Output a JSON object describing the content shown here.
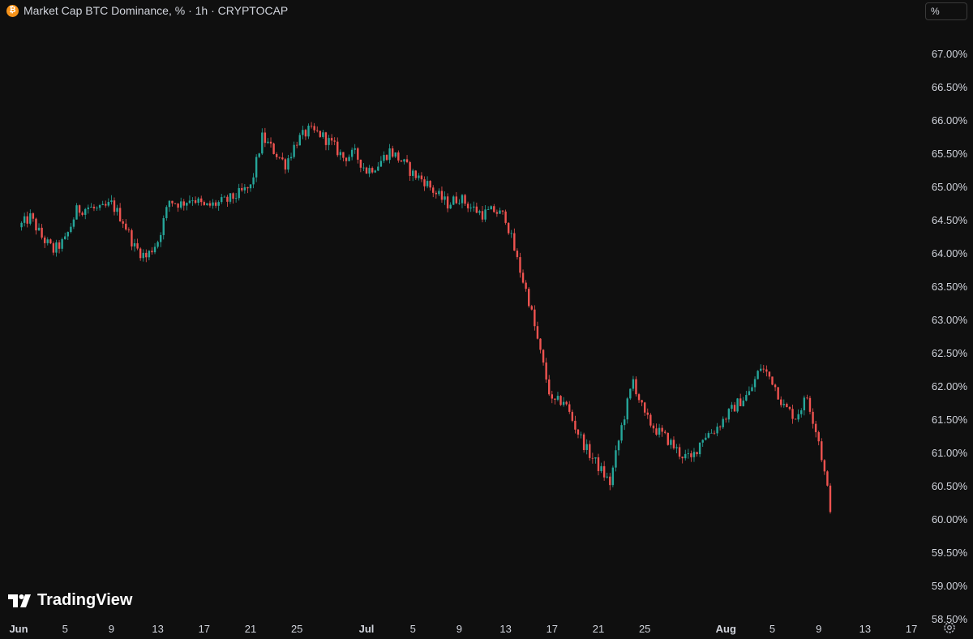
{
  "header": {
    "title": "Market Cap BTC Dominance, % · 1h · CRYPTOCAP",
    "symbol_icon": "bitcoin-icon",
    "icon_glyph": "₿"
  },
  "scale_button": {
    "label": "%"
  },
  "watermark": {
    "text": "TradingView",
    "icon": "tradingview-logo-icon"
  },
  "footer": {
    "settings_icon": "gear-icon"
  },
  "colors": {
    "background": "#0f0f0f",
    "up": "#26a69a",
    "down": "#ef5350",
    "axis_text": "#d1d4dc",
    "title_text": "#d1d4dc",
    "icon_orange": "#f7931a"
  },
  "chart_data": {
    "type": "candlestick",
    "title": "Market Cap BTC Dominance, % · 1h · CRYPTOCAP",
    "xlabel": "",
    "ylabel": "",
    "y_unit": "%",
    "ylim": [
      58.35,
      67.25
    ],
    "yticks": [
      59.0,
      59.5,
      60.0,
      60.5,
      61.0,
      61.5,
      62.0,
      62.5,
      63.0,
      63.5,
      64.0,
      64.5,
      65.0,
      65.5,
      66.0,
      66.5,
      67.0
    ],
    "ytick_labels": [
      "59.00%",
      "59.50%",
      "60.00%",
      "60.50%",
      "61.00%",
      "61.50%",
      "62.00%",
      "62.50%",
      "63.00%",
      "63.50%",
      "64.00%",
      "64.50%",
      "65.00%",
      "65.50%",
      "66.00%",
      "66.50%",
      "67.00%"
    ],
    "extra_ytick_labels": [
      "58.50%"
    ],
    "xlim": [
      "2024-06-01",
      "2024-08-18"
    ],
    "xticks": [
      "2024-06-01",
      "2024-06-05",
      "2024-06-09",
      "2024-06-13",
      "2024-06-17",
      "2024-06-21",
      "2024-06-25",
      "2024-07-01",
      "2024-07-05",
      "2024-07-09",
      "2024-07-13",
      "2024-07-17",
      "2024-07-21",
      "2024-07-25",
      "2024-08-01",
      "2024-08-05",
      "2024-08-09",
      "2024-08-13",
      "2024-08-17"
    ],
    "xtick_labels": [
      "Jun",
      "5",
      "9",
      "13",
      "17",
      "21",
      "25",
      "Jul",
      "5",
      "9",
      "13",
      "17",
      "21",
      "25",
      "Aug",
      "5",
      "9",
      "13",
      "17"
    ],
    "series": [
      {
        "x": [
          "2024-06-01",
          "2024-06-02",
          "2024-06-03",
          "2024-06-04",
          "2024-06-05",
          "2024-06-06",
          "2024-06-07",
          "2024-06-08",
          "2024-06-09",
          "2024-06-10",
          "2024-06-11",
          "2024-06-12",
          "2024-06-13",
          "2024-06-14",
          "2024-06-15",
          "2024-06-16",
          "2024-06-17",
          "2024-06-18",
          "2024-06-19",
          "2024-06-20",
          "2024-06-21",
          "2024-06-22",
          "2024-06-23",
          "2024-06-24",
          "2024-06-25",
          "2024-06-26",
          "2024-06-27",
          "2024-06-28",
          "2024-06-29",
          "2024-06-30",
          "2024-07-01",
          "2024-07-02",
          "2024-07-03",
          "2024-07-04",
          "2024-07-05",
          "2024-07-06",
          "2024-07-07",
          "2024-07-08",
          "2024-07-09",
          "2024-07-10",
          "2024-07-11",
          "2024-07-12",
          "2024-07-13",
          "2024-07-14",
          "2024-07-15",
          "2024-07-16",
          "2024-07-17",
          "2024-07-18",
          "2024-07-19",
          "2024-07-20",
          "2024-07-21",
          "2024-07-22",
          "2024-07-23",
          "2024-07-24",
          "2024-07-25",
          "2024-07-26",
          "2024-07-27",
          "2024-07-28",
          "2024-07-29",
          "2024-07-30",
          "2024-07-31",
          "2024-08-01",
          "2024-08-02",
          "2024-08-03",
          "2024-08-04",
          "2024-08-05",
          "2024-08-06",
          "2024-08-07",
          "2024-08-08",
          "2024-08-09",
          "2024-08-10"
        ],
        "values": [
          64.4,
          64.55,
          64.25,
          64.05,
          64.2,
          64.65,
          64.7,
          64.65,
          64.75,
          64.5,
          64.1,
          63.95,
          64.2,
          64.8,
          64.75,
          64.85,
          64.7,
          64.75,
          64.8,
          64.9,
          65.0,
          65.75,
          65.55,
          65.35,
          65.7,
          65.85,
          65.8,
          65.65,
          65.45,
          65.5,
          65.25,
          65.35,
          65.55,
          65.4,
          65.2,
          65.1,
          64.9,
          64.75,
          64.85,
          64.7,
          64.6,
          64.65,
          64.55,
          63.9,
          63.3,
          62.5,
          61.75,
          61.8,
          61.4,
          61.05,
          60.8,
          60.55,
          61.4,
          62.1,
          61.55,
          61.35,
          61.2,
          61.0,
          60.9,
          61.25,
          61.35,
          61.55,
          61.75,
          61.9,
          62.3,
          62.1,
          61.7,
          61.55,
          61.85,
          61.2,
          60.2
        ]
      }
    ]
  }
}
